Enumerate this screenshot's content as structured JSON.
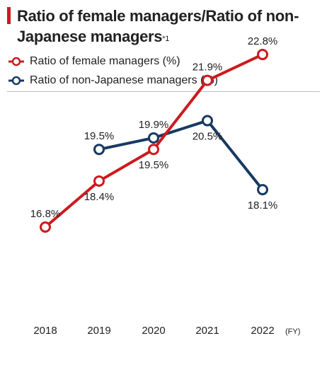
{
  "header": {
    "title": "Ratio of female managers/Ratio of non-Japanese managers",
    "footnote": "*1"
  },
  "chart_data": {
    "type": "line",
    "categories": [
      "2018",
      "2019",
      "2020",
      "2021",
      "2022"
    ],
    "x_unit": "(FY)",
    "series": [
      {
        "name": "Ratio of female managers (%)",
        "color": "#cc1a1f",
        "values": [
          16.8,
          18.4,
          19.5,
          21.9,
          22.8
        ],
        "labels": [
          "16.8%",
          "18.4%",
          "19.5%",
          "21.9%",
          "22.8%"
        ]
      },
      {
        "name": "Ratio of non-Japanese managers (%)",
        "color": "#173a61",
        "values": [
          null,
          19.5,
          19.9,
          20.5,
          18.1
        ],
        "labels": [
          null,
          "19.5%",
          "19.9%",
          "20.5%",
          "18.1%"
        ]
      }
    ],
    "ylim": [
      14,
      26
    ],
    "grid": false,
    "legend": "top-left"
  }
}
